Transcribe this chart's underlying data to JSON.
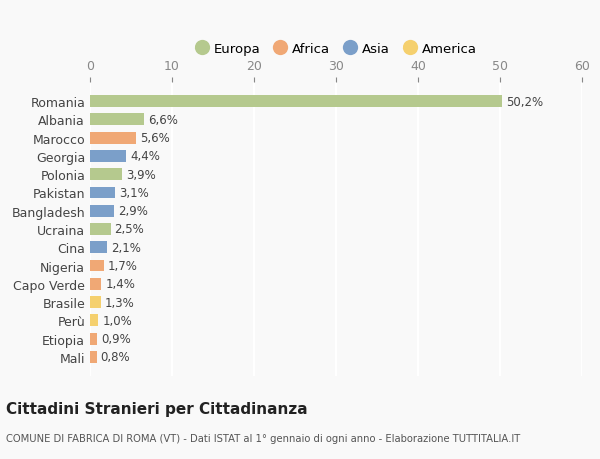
{
  "categories": [
    "Romania",
    "Albania",
    "Marocco",
    "Georgia",
    "Polonia",
    "Pakistan",
    "Bangladesh",
    "Ucraina",
    "Cina",
    "Nigeria",
    "Capo Verde",
    "Brasile",
    "Perù",
    "Etiopia",
    "Mali"
  ],
  "values": [
    50.2,
    6.6,
    5.6,
    4.4,
    3.9,
    3.1,
    2.9,
    2.5,
    2.1,
    1.7,
    1.4,
    1.3,
    1.0,
    0.9,
    0.8
  ],
  "labels": [
    "50,2%",
    "6,6%",
    "5,6%",
    "4,4%",
    "3,9%",
    "3,1%",
    "2,9%",
    "2,5%",
    "2,1%",
    "1,7%",
    "1,4%",
    "1,3%",
    "1,0%",
    "0,9%",
    "0,8%"
  ],
  "continents": [
    "Europa",
    "Europa",
    "Africa",
    "Asia",
    "Europa",
    "Asia",
    "Asia",
    "Europa",
    "Asia",
    "Africa",
    "Africa",
    "America",
    "America",
    "Africa",
    "Africa"
  ],
  "colors": {
    "Europa": "#b5c98e",
    "Africa": "#f0a875",
    "Asia": "#7b9fc9",
    "America": "#f5d06e"
  },
  "legend_order": [
    "Europa",
    "Africa",
    "Asia",
    "America"
  ],
  "xlim": [
    0,
    60
  ],
  "xticks": [
    0,
    10,
    20,
    30,
    40,
    50,
    60
  ],
  "title": "Cittadini Stranieri per Cittadinanza",
  "subtitle": "COMUNE DI FABRICA DI ROMA (VT) - Dati ISTAT al 1° gennaio di ogni anno - Elaborazione TUTTITALIA.IT",
  "bg_color": "#f9f9f9",
  "grid_color": "#ffffff",
  "bar_height": 0.65
}
